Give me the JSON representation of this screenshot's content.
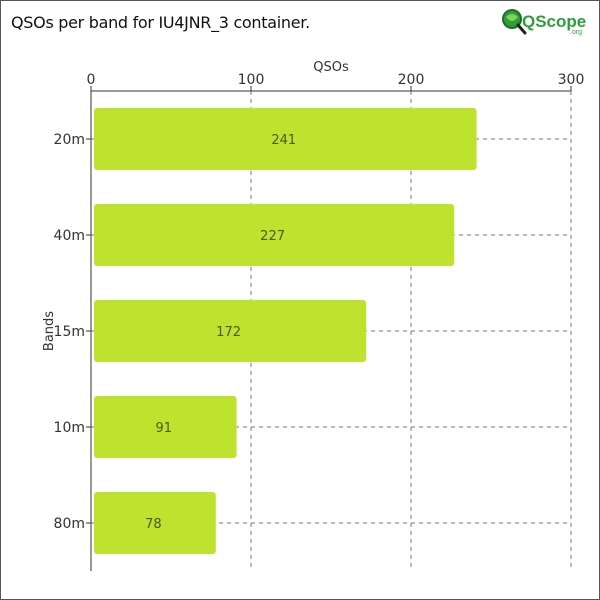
{
  "page": {
    "title": "QSOs per band for IU4JNR_3 container."
  },
  "logo": {
    "text": "QScope",
    "suffix": ".org",
    "icon": "magnifier-globe-icon",
    "color": "#2e9e3a"
  },
  "chart_data": {
    "type": "bar",
    "orientation": "horizontal",
    "categories": [
      "20m",
      "40m",
      "15m",
      "10m",
      "80m"
    ],
    "values": [
      241,
      227,
      172,
      91,
      78
    ],
    "xlabel": "QSOs",
    "ylabel": "Bands",
    "xlim": [
      0,
      300
    ],
    "xticks": [
      0,
      100,
      200,
      300
    ],
    "x_axis_position": "top",
    "grid": "vertical dashed",
    "bar_color": "#bde32f",
    "data_labels": true
  }
}
